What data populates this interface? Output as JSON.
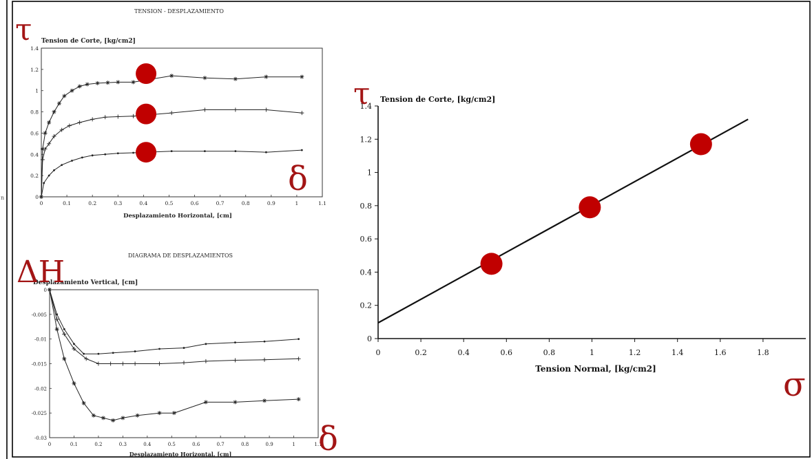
{
  "symbols": {
    "tau_top": "τ",
    "tau_right": "τ",
    "delta_top": "δ",
    "delta_bottom": "δ",
    "delta_h": "ΔH",
    "sigma": "σ"
  },
  "colors": {
    "marker": "#c00000",
    "symbol": "#a31515",
    "ink": "#222222"
  },
  "chart_data": [
    {
      "type": "line",
      "title": "TENSION - DESPLAZAMIENTO",
      "xlabel": "Desplazamiento Horizontal, [cm]",
      "ylabel": "Tension de Corte, [kg/cm2]",
      "xlim": [
        0,
        1.1
      ],
      "ylim": [
        0,
        1.4
      ],
      "xticks": [
        "0",
        "0.1",
        "0.2",
        "0.3",
        "0.4",
        "0.5",
        "0.6",
        "0.7",
        "0.8",
        "0.9",
        "1",
        "1.1"
      ],
      "yticks": [
        "0",
        "0.2",
        "0.4",
        "0.6",
        "0.8",
        "1",
        "1.2",
        "1.4"
      ],
      "xtick_values": [
        0,
        0.1,
        0.2,
        0.3,
        0.4,
        0.5,
        0.6,
        0.7,
        0.8,
        0.9,
        1.0,
        1.1
      ],
      "ytick_values": [
        0,
        0.2,
        0.4,
        0.6,
        0.8,
        1.0,
        1.2,
        1.4
      ],
      "series": [
        {
          "marker": "star",
          "x": [
            0,
            0.005,
            0.015,
            0.03,
            0.05,
            0.07,
            0.09,
            0.12,
            0.15,
            0.18,
            0.22,
            0.26,
            0.3,
            0.36,
            0.51,
            0.64,
            0.76,
            0.88,
            1.02
          ],
          "y": [
            0,
            0.45,
            0.6,
            0.7,
            0.8,
            0.88,
            0.95,
            1.0,
            1.04,
            1.06,
            1.07,
            1.075,
            1.08,
            1.08,
            1.14,
            1.12,
            1.11,
            1.13,
            1.13
          ]
        },
        {
          "marker": "plus",
          "x": [
            0,
            0.005,
            0.015,
            0.03,
            0.05,
            0.08,
            0.11,
            0.15,
            0.2,
            0.25,
            0.3,
            0.36,
            0.51,
            0.64,
            0.76,
            0.88,
            1.02
          ],
          "y": [
            0,
            0.35,
            0.45,
            0.5,
            0.57,
            0.63,
            0.67,
            0.7,
            0.73,
            0.75,
            0.755,
            0.76,
            0.79,
            0.82,
            0.82,
            0.82,
            0.79
          ]
        },
        {
          "marker": "dot",
          "x": [
            0,
            0.01,
            0.03,
            0.05,
            0.08,
            0.12,
            0.16,
            0.2,
            0.25,
            0.3,
            0.36,
            0.51,
            0.64,
            0.76,
            0.88,
            1.02
          ],
          "y": [
            0,
            0.13,
            0.2,
            0.25,
            0.3,
            0.34,
            0.37,
            0.39,
            0.4,
            0.41,
            0.415,
            0.43,
            0.43,
            0.43,
            0.42,
            0.44
          ]
        }
      ],
      "highlight_points": [
        {
          "x": 0.41,
          "y": 1.16
        },
        {
          "x": 0.41,
          "y": 0.78
        },
        {
          "x": 0.41,
          "y": 0.42
        }
      ]
    },
    {
      "type": "line",
      "title": "DIAGRAMA DE DESPLAZAMIENTOS",
      "xlabel": "Desplazamiento Horizontal, [cm]",
      "ylabel": "Desplazamiento Vertical, [cm]",
      "xlim": [
        0,
        1.1
      ],
      "ylim": [
        -0.03,
        0
      ],
      "xticks": [
        "0",
        "0.1",
        "0.2",
        "0.3",
        "0.4",
        "0.5",
        "0.6",
        "0.7",
        "0.8",
        "0.9",
        "1",
        "1.1"
      ],
      "yticks": [
        "0",
        "-0.005",
        "-0.01",
        "-0.015",
        "-0.02",
        "-0.025",
        "-0.03"
      ],
      "xtick_values": [
        0,
        0.1,
        0.2,
        0.3,
        0.4,
        0.5,
        0.6,
        0.7,
        0.8,
        0.9,
        1.0,
        1.1
      ],
      "ytick_values": [
        0,
        -0.005,
        -0.01,
        -0.015,
        -0.02,
        -0.025,
        -0.03
      ],
      "series": [
        {
          "marker": "dot",
          "x": [
            0,
            0.03,
            0.06,
            0.1,
            0.14,
            0.2,
            0.26,
            0.35,
            0.45,
            0.55,
            0.64,
            0.76,
            0.88,
            1.02
          ],
          "y": [
            0,
            -0.005,
            -0.008,
            -0.011,
            -0.013,
            -0.013,
            -0.0128,
            -0.0125,
            -0.012,
            -0.0118,
            -0.011,
            -0.0107,
            -0.0105,
            -0.01
          ]
        },
        {
          "marker": "plus",
          "x": [
            0,
            0.03,
            0.06,
            0.1,
            0.15,
            0.2,
            0.25,
            0.3,
            0.35,
            0.45,
            0.55,
            0.64,
            0.76,
            0.88,
            1.02
          ],
          "y": [
            0,
            -0.006,
            -0.009,
            -0.012,
            -0.014,
            -0.015,
            -0.015,
            -0.015,
            -0.015,
            -0.015,
            -0.0148,
            -0.0145,
            -0.0143,
            -0.0142,
            -0.014
          ]
        },
        {
          "marker": "star",
          "x": [
            0,
            0.03,
            0.06,
            0.1,
            0.14,
            0.18,
            0.22,
            0.26,
            0.3,
            0.36,
            0.45,
            0.51,
            0.64,
            0.76,
            0.88,
            1.02
          ],
          "y": [
            0,
            -0.008,
            -0.014,
            -0.019,
            -0.023,
            -0.0255,
            -0.026,
            -0.0265,
            -0.026,
            -0.0255,
            -0.025,
            -0.025,
            -0.0228,
            -0.0228,
            -0.0225,
            -0.0222
          ]
        }
      ]
    },
    {
      "type": "line",
      "xlabel": "Tension Normal, [kg/cm2]",
      "ylabel": "Tension de Corte, [kg/cm2]",
      "xlim": [
        0,
        2
      ],
      "ylim": [
        0,
        1.4
      ],
      "xticks": [
        "0",
        "0.2",
        "0.4",
        "0.6",
        "0.8",
        "1",
        "1.2",
        "1.4",
        "1.6",
        "1.8"
      ],
      "yticks": [
        "0",
        "0.2",
        "0.4",
        "0.6",
        "0.8",
        "1",
        "1.2",
        "1.4"
      ],
      "xtick_values": [
        0,
        0.2,
        0.4,
        0.6,
        0.8,
        1.0,
        1.2,
        1.4,
        1.6,
        1.8
      ],
      "ytick_values": [
        0,
        0.2,
        0.4,
        0.6,
        0.8,
        1.0,
        1.2,
        1.4
      ],
      "grid": false,
      "series": [
        {
          "x": [
            0,
            1.73
          ],
          "y": [
            0.095,
            1.32
          ]
        }
      ],
      "points": [
        {
          "x": 0.53,
          "y": 0.45
        },
        {
          "x": 0.99,
          "y": 0.79
        },
        {
          "x": 1.51,
          "y": 1.17
        }
      ]
    }
  ]
}
